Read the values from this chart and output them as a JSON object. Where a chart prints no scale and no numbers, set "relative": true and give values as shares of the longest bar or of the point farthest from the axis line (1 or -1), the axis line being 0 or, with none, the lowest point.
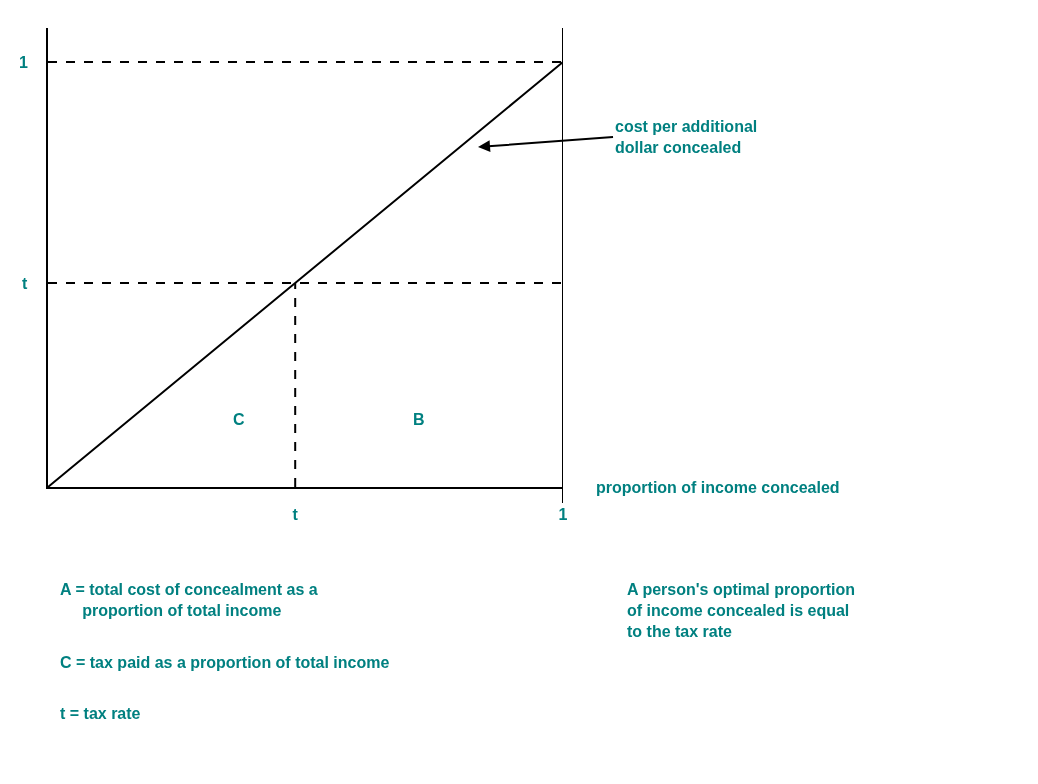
{
  "chart_data": {
    "type": "line",
    "relative": true,
    "xlabel": "proportion of income concealed",
    "categories": [
      null,
      null,
      null,
      null,
      null,
      null,
      null,
      null,
      null,
      null,
      null,
      null,
      "t",
      null,
      null,
      null,
      null,
      null,
      null,
      null,
      null,
      null,
      null,
      null,
      null,
      "1"
    ],
    "series": [
      {
        "color": "#000000",
        "values": [
          0,
          0.04,
          0.08,
          0.12,
          0.16,
          0.2,
          0.24,
          0.28,
          0.32,
          0.36,
          0.4,
          0.44,
          0.48,
          0.52,
          0.56,
          0.6,
          0.64,
          0.68,
          0.72,
          0.76,
          0.8,
          0.84,
          0.88,
          0.92,
          0.96,
          1
        ],
        "line_style": "solid"
      },
      {
        "color": "#000000",
        "x": [
          "t",
          "t"
        ],
        "values": [
          0,
          0.48
        ],
        "line_style": "dashed"
      }
    ],
    "ref_lines": [
      {
        "axis": "y",
        "value": 1,
        "label": "1",
        "line_style": "dashed",
        "color": "#000000"
      },
      {
        "axis": "y",
        "value": 0.48,
        "label": "t",
        "line_style": "dashed",
        "color": "#000000"
      },
      {
        "axis": "x",
        "value": "1",
        "line_style": "solid",
        "color": "#000000"
      }
    ],
    "annotations": [
      "cost per additional\ndollar concealed",
      "C",
      "B",
      "A = total cost of concealment as a\n     proportion of total income",
      "C = tax paid as a proportion of total income",
      "t = tax rate",
      "A person's optimal proportion\nof income concealed is equal\nto the tax rate"
    ]
  }
}
